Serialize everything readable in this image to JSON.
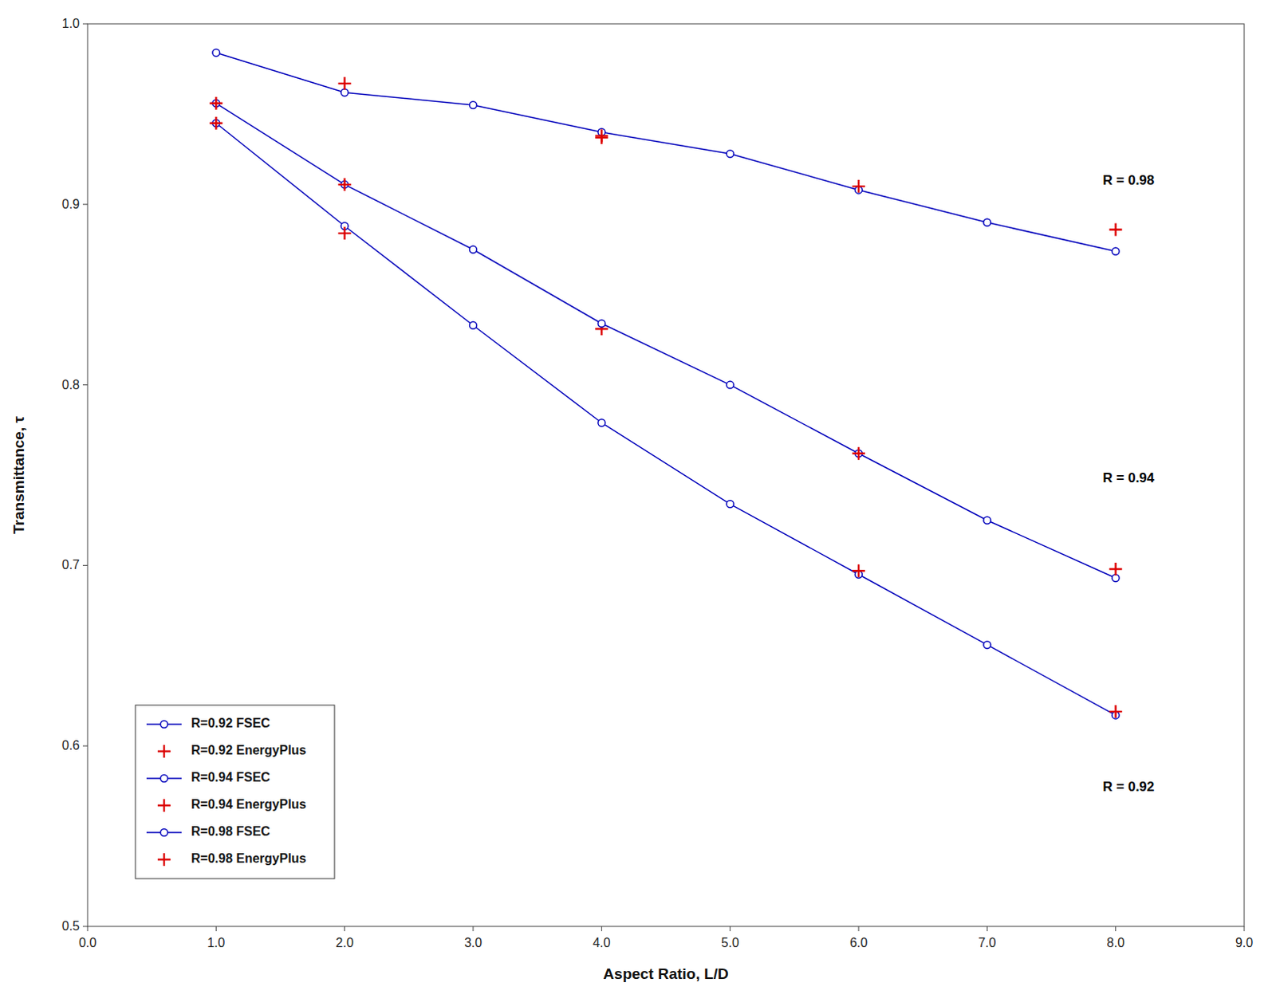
{
  "chart_data": {
    "type": "line",
    "x_label": "Aspect Ratio, L/D",
    "y_label": "Transmittance, τ",
    "xlim": [
      0.0,
      9.0
    ],
    "ylim": [
      0.5,
      1.0
    ],
    "xticks": [
      {
        "value": 0,
        "label": "0.0"
      },
      {
        "value": 1,
        "label": "1.0"
      },
      {
        "value": 2,
        "label": "2.0"
      },
      {
        "value": 3,
        "label": "3.0"
      },
      {
        "value": 4,
        "label": "4.0"
      },
      {
        "value": 5,
        "label": "5.0"
      },
      {
        "value": 6,
        "label": "6.0"
      },
      {
        "value": 7,
        "label": "7.0"
      },
      {
        "value": 8,
        "label": "8.0"
      },
      {
        "value": 9,
        "label": "9.0"
      }
    ],
    "yticks": [
      0.5,
      0.6,
      0.7,
      0.8,
      0.9,
      {
        "value": 1,
        "label": "1.0"
      }
    ],
    "grid": false,
    "legend": "lower left",
    "series": [
      {
        "name": "R=0.92 FSEC",
        "type": "line",
        "marker": "circle",
        "line_style": "solid",
        "color": "#0000bb",
        "x": [
          1,
          2,
          3,
          4,
          5,
          6,
          7,
          8
        ],
        "values": [
          0.945,
          0.888,
          0.833,
          0.779,
          0.734,
          0.695,
          0.656,
          0.617
        ]
      },
      {
        "name": "R=0.92 EnergyPlus",
        "type": "scatter",
        "marker": "plus",
        "color": "#dd0000",
        "x": [
          1,
          2,
          4,
          6,
          8
        ],
        "values": [
          0.945,
          0.884,
          0.831,
          0.697,
          0.619
        ]
      },
      {
        "name": "R=0.94 FSEC",
        "type": "line",
        "marker": "circle",
        "line_style": "solid",
        "color": "#0000bb",
        "x": [
          1,
          2,
          3,
          4,
          5,
          6,
          7,
          8
        ],
        "values": [
          0.956,
          0.911,
          0.875,
          0.834,
          0.8,
          0.762,
          0.725,
          0.693
        ]
      },
      {
        "name": "R=0.94 EnergyPlus",
        "type": "scatter",
        "marker": "plus",
        "color": "#dd0000",
        "x": [
          1,
          2,
          4,
          6,
          8
        ],
        "values": [
          0.956,
          0.911,
          0.937,
          0.762,
          0.698
        ]
      },
      {
        "name": "R=0.98 FSEC",
        "type": "line",
        "marker": "circle",
        "line_style": "solid",
        "color": "#0000bb",
        "x": [
          1,
          2,
          3,
          4,
          5,
          6,
          7,
          8
        ],
        "values": [
          0.984,
          0.962,
          0.955,
          0.94,
          0.928,
          0.908,
          0.89,
          0.874
        ]
      },
      {
        "name": "R=0.98 EnergyPlus",
        "type": "scatter",
        "marker": "plus",
        "color": "#dd0000",
        "x": [
          2,
          4,
          6,
          8
        ],
        "values": [
          0.967,
          0.938,
          0.91,
          0.886
        ]
      }
    ],
    "annotations": [
      {
        "text": "R = 0.98",
        "x": 7.9,
        "y": 0.913
      },
      {
        "text": "R = 0.94",
        "x": 7.9,
        "y": 0.748
      },
      {
        "text": "R = 0.92",
        "x": 7.9,
        "y": 0.577
      }
    ]
  }
}
